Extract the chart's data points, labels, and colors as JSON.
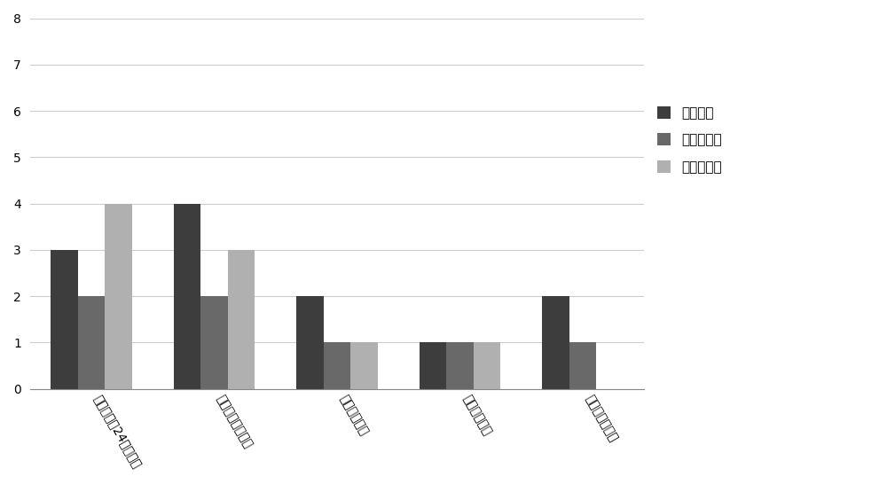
{
  "categories": [
    "故障停机超24小时台数",
    "故障消缺停机台数",
    "定检维护台数",
    "计划停机台数",
    "降出力运行台数"
  ],
  "series": [
    {
      "name": "那仁风场",
      "values": [
        3,
        4,
        2,
        1,
        2
      ],
      "color": "#3d3d3d"
    },
    {
      "name": "奈日木风场",
      "values": [
        2,
        2,
        1,
        1,
        1
      ],
      "color": "#696969"
    },
    {
      "name": "乌达莱风场",
      "values": [
        4,
        3,
        1,
        1,
        0
      ],
      "color": "#b0b0b0"
    }
  ],
  "ylim": [
    0,
    8
  ],
  "yticks": [
    0,
    1,
    2,
    3,
    4,
    5,
    6,
    7,
    8
  ],
  "bar_width": 0.22,
  "background_color": "#ffffff",
  "grid_color": "#cccccc",
  "legend_fontsize": 11,
  "tick_fontsize": 10,
  "xlabel_rotation": -60
}
